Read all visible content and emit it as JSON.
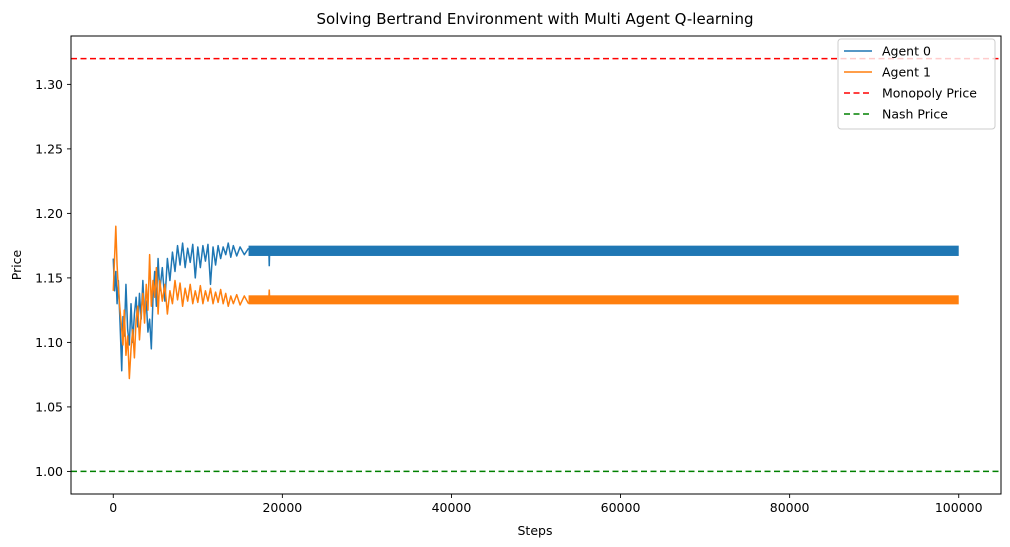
{
  "chart_data": {
    "type": "line",
    "title": "Solving Bertrand Environment with Multi Agent Q-learning",
    "xlabel": "Steps",
    "ylabel": "Price",
    "xlim": [
      -5000,
      105000
    ],
    "ylim": [
      0.9825,
      1.3375
    ],
    "xticks": [
      0,
      20000,
      40000,
      60000,
      80000,
      100000
    ],
    "xtick_labels": [
      "0",
      "20000",
      "40000",
      "60000",
      "80000",
      "100000"
    ],
    "yticks": [
      1.0,
      1.05,
      1.1,
      1.15,
      1.2,
      1.25,
      1.3
    ],
    "ytick_labels": [
      "1.00",
      "1.05",
      "1.10",
      "1.15",
      "1.20",
      "1.25",
      "1.30"
    ],
    "grid": false,
    "legend_position": "top-right",
    "series": [
      {
        "name": "Agent 0",
        "color": "#1f77b4",
        "style": "solid",
        "points": [
          [
            0,
            1.165
          ],
          [
            150,
            1.14
          ],
          [
            300,
            1.155
          ],
          [
            450,
            1.13
          ],
          [
            600,
            1.148
          ],
          [
            800,
            1.115
          ],
          [
            1000,
            1.078
          ],
          [
            1150,
            1.12
          ],
          [
            1300,
            1.105
          ],
          [
            1500,
            1.145
          ],
          [
            1700,
            1.11
          ],
          [
            1900,
            1.098
          ],
          [
            2100,
            1.13
          ],
          [
            2300,
            1.1
          ],
          [
            2500,
            1.122
          ],
          [
            2700,
            1.135
          ],
          [
            2900,
            1.112
          ],
          [
            3100,
            1.138
          ],
          [
            3300,
            1.118
          ],
          [
            3500,
            1.148
          ],
          [
            3700,
            1.12
          ],
          [
            3900,
            1.132
          ],
          [
            4100,
            1.108
          ],
          [
            4300,
            1.118
          ],
          [
            4500,
            1.095
          ],
          [
            4700,
            1.135
          ],
          [
            4900,
            1.155
          ],
          [
            5100,
            1.128
          ],
          [
            5300,
            1.165
          ],
          [
            5500,
            1.14
          ],
          [
            5800,
            1.158
          ],
          [
            6100,
            1.132
          ],
          [
            6400,
            1.165
          ],
          [
            6700,
            1.148
          ],
          [
            7000,
            1.17
          ],
          [
            7300,
            1.155
          ],
          [
            7600,
            1.175
          ],
          [
            7900,
            1.16
          ],
          [
            8200,
            1.177
          ],
          [
            8500,
            1.158
          ],
          [
            8800,
            1.173
          ],
          [
            9100,
            1.162
          ],
          [
            9400,
            1.176
          ],
          [
            9700,
            1.15
          ],
          [
            10000,
            1.174
          ],
          [
            10300,
            1.158
          ],
          [
            10600,
            1.175
          ],
          [
            10900,
            1.163
          ],
          [
            11200,
            1.176
          ],
          [
            11500,
            1.145
          ],
          [
            11800,
            1.174
          ],
          [
            12100,
            1.16
          ],
          [
            12400,
            1.175
          ],
          [
            12700,
            1.165
          ],
          [
            13000,
            1.174
          ],
          [
            13300,
            1.168
          ],
          [
            13600,
            1.177
          ],
          [
            13900,
            1.166
          ],
          [
            14200,
            1.175
          ],
          [
            14600,
            1.167
          ],
          [
            15000,
            1.174
          ],
          [
            15500,
            1.168
          ],
          [
            16000,
            1.173
          ]
        ]
      },
      {
        "name": "Agent 1",
        "color": "#ff7f0e",
        "style": "solid",
        "points": [
          [
            0,
            1.14
          ],
          [
            150,
            1.165
          ],
          [
            300,
            1.19
          ],
          [
            450,
            1.16
          ],
          [
            600,
            1.142
          ],
          [
            800,
            1.125
          ],
          [
            1000,
            1.11
          ],
          [
            1150,
            1.098
          ],
          [
            1300,
            1.125
          ],
          [
            1500,
            1.09
          ],
          [
            1700,
            1.105
          ],
          [
            1900,
            1.072
          ],
          [
            2100,
            1.095
          ],
          [
            2300,
            1.11
          ],
          [
            2500,
            1.088
          ],
          [
            2700,
            1.118
          ],
          [
            2900,
            1.128
          ],
          [
            3100,
            1.102
          ],
          [
            3300,
            1.122
          ],
          [
            3500,
            1.138
          ],
          [
            3700,
            1.115
          ],
          [
            3900,
            1.145
          ],
          [
            4100,
            1.125
          ],
          [
            4300,
            1.168
          ],
          [
            4500,
            1.128
          ],
          [
            4700,
            1.148
          ],
          [
            4900,
            1.135
          ],
          [
            5100,
            1.158
          ],
          [
            5300,
            1.122
          ],
          [
            5500,
            1.148
          ],
          [
            5800,
            1.132
          ],
          [
            6100,
            1.145
          ],
          [
            6400,
            1.122
          ],
          [
            6700,
            1.14
          ],
          [
            7000,
            1.13
          ],
          [
            7300,
            1.148
          ],
          [
            7600,
            1.133
          ],
          [
            7900,
            1.146
          ],
          [
            8200,
            1.128
          ],
          [
            8500,
            1.142
          ],
          [
            8800,
            1.132
          ],
          [
            9100,
            1.145
          ],
          [
            9400,
            1.13
          ],
          [
            9700,
            1.14
          ],
          [
            10000,
            1.131
          ],
          [
            10300,
            1.144
          ],
          [
            10600,
            1.13
          ],
          [
            10900,
            1.14
          ],
          [
            11200,
            1.132
          ],
          [
            11500,
            1.142
          ],
          [
            11800,
            1.13
          ],
          [
            12100,
            1.139
          ],
          [
            12400,
            1.131
          ],
          [
            12700,
            1.141
          ],
          [
            13000,
            1.13
          ],
          [
            13300,
            1.138
          ],
          [
            13600,
            1.128
          ],
          [
            13900,
            1.136
          ],
          [
            14200,
            1.13
          ],
          [
            14600,
            1.137
          ],
          [
            15000,
            1.129
          ],
          [
            15500,
            1.136
          ],
          [
            16000,
            1.13
          ]
        ]
      },
      {
        "name": "Monopoly Price",
        "color": "#ff0000",
        "style": "dashed",
        "y": 1.32
      },
      {
        "name": "Nash Price",
        "color": "#008000",
        "style": "dashed",
        "y": 1.0
      }
    ],
    "bands": [
      {
        "series": "Agent 0",
        "x": [
          16000,
          100000
        ],
        "y": [
          1.167,
          1.175
        ],
        "color": "#1f77b4"
      },
      {
        "series": "Agent 1",
        "x": [
          16000,
          100000
        ],
        "y": [
          1.1295,
          1.1365
        ],
        "color": "#ff7f0e"
      }
    ],
    "outliers": [
      {
        "series": "Agent 0",
        "points": [
          [
            18400,
            1.172
          ],
          [
            18450,
            1.159
          ],
          [
            18500,
            1.172
          ]
        ]
      },
      {
        "series": "Agent 1",
        "points": [
          [
            18400,
            1.133
          ],
          [
            18450,
            1.141
          ],
          [
            18500,
            1.133
          ]
        ]
      }
    ]
  }
}
